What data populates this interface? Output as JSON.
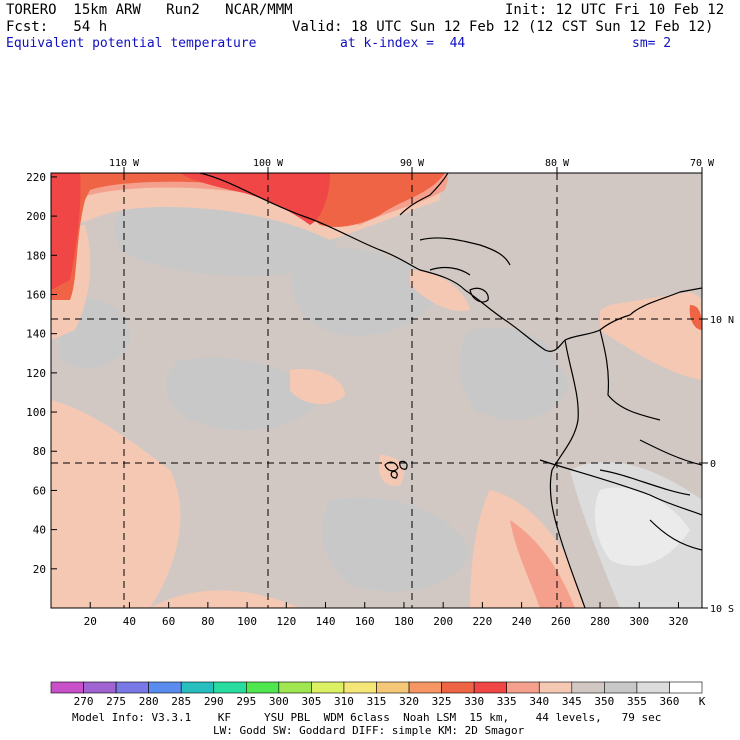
{
  "header": {
    "model": "TORERO  15km ARW   Run2   NCAR/MMM",
    "init": "Init: 12 UTC Fri 10 Feb 12",
    "fcst": "Fcst:   54 h",
    "valid": "Valid: 18 UTC Sun 12 Feb 12 (12 CST Sun 12 Feb 12)",
    "field": "Equivalent potential temperature",
    "level": "at k-index =  44",
    "smoothing": "sm= 2"
  },
  "axes": {
    "x_ticks": [
      "20",
      "40",
      "60",
      "80",
      "100",
      "120",
      "140",
      "160",
      "180",
      "200",
      "220",
      "240",
      "260",
      "280",
      "300",
      "320"
    ],
    "y_ticks": [
      "20",
      "40",
      "60",
      "80",
      "100",
      "120",
      "140",
      "160",
      "180",
      "200",
      "220"
    ],
    "lon_labels": [
      "110 W",
      "100 W",
      "90 W",
      "80 W",
      "70 W"
    ],
    "lat_labels": [
      "10 N",
      "0",
      "10 S"
    ]
  },
  "colorbar": {
    "labels": [
      "270",
      "275",
      "280",
      "285",
      "290",
      "295",
      "300",
      "305",
      "310",
      "315",
      "320",
      "325",
      "330",
      "335",
      "340",
      "345",
      "350",
      "355",
      "360"
    ],
    "unit": "K",
    "colors": [
      "#c850c8",
      "#a064d2",
      "#7878e6",
      "#5a8cf0",
      "#28bebe",
      "#28dca0",
      "#50e650",
      "#a0e650",
      "#dcf064",
      "#f5e678",
      "#f5c878",
      "#f59664",
      "#f06446",
      "#f04646",
      "#f5a08c",
      "#f5c8b4",
      "#d2c8c3",
      "#c8c8c8",
      "#dcdcdc",
      "#ffffff"
    ]
  },
  "footer": {
    "line1": "Model Info: V3.3.1    KF     YSU PBL  WDM 6class  Noah LSM  15 km,    44 levels,   79 sec",
    "line2": "LW: Godd SW: Goddard DIFF: simple KM: 2D Smagor"
  }
}
